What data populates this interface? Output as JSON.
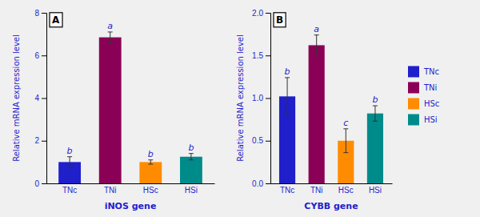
{
  "chart_data": [
    {
      "type": "bar",
      "title": "A",
      "categories": [
        "TNc",
        "TNi",
        "HSc",
        "HSi"
      ],
      "values": [
        1.0,
        6.85,
        1.0,
        1.25
      ],
      "errors": [
        0.25,
        0.25,
        0.1,
        0.15
      ],
      "colors": [
        "#1f1fcc",
        "#8b0057",
        "#ff8c00",
        "#008b8b"
      ],
      "letters": [
        "b",
        "a",
        "b",
        "b"
      ],
      "ylabel": "Relative mRNA expression level",
      "xlabel": "iNOS gene",
      "ylim": [
        0,
        8
      ],
      "yticks": [
        0,
        2,
        4,
        6,
        8
      ],
      "grid": false
    },
    {
      "type": "bar",
      "title": "B",
      "categories": [
        "TNc",
        "TNi",
        "HSc",
        "HSi"
      ],
      "values": [
        1.02,
        1.62,
        0.5,
        0.82
      ],
      "errors": [
        0.22,
        0.12,
        0.14,
        0.09
      ],
      "colors": [
        "#1f1fcc",
        "#8b0057",
        "#ff8c00",
        "#008b8b"
      ],
      "letters": [
        "b",
        "a",
        "c",
        "b"
      ],
      "ylabel": "Relative mRNA expression level",
      "xlabel": "CYBB gene",
      "ylim": [
        0,
        2.0
      ],
      "yticks": [
        {
          "value": 0.0,
          "label": "0.0"
        },
        0.5,
        {
          "value": 1.0,
          "label": "1.0"
        },
        1.5,
        {
          "value": 2.0,
          "label": "2.0"
        }
      ],
      "grid": false,
      "legend": "right"
    }
  ]
}
